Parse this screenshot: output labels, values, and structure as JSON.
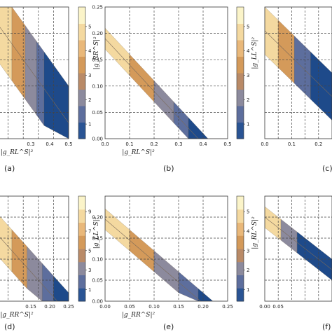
{
  "chart_data": [
    {
      "type": "heatmap",
      "panel_label": "(a)",
      "xlabel": "|g_RL^S|²",
      "ylabel": "",
      "x_ticks": [
        "0.3",
        "0.4",
        "0.5"
      ],
      "y_ticks": [],
      "colorbar_ticks": [
        "1",
        "2",
        "3",
        "4",
        "5"
      ],
      "colorbar_label": "|g_RR^S|²",
      "xlim": [
        0.1,
        0.5
      ],
      "ylim": [
        0,
        0.25
      ],
      "band": {
        "intercept_min": 0.21,
        "intercept_max": 0.35,
        "slope": -0.5,
        "x_max": 0.5
      },
      "bands_x": [
        0.1,
        0.2,
        0.27,
        0.33,
        0.37,
        0.5
      ]
    },
    {
      "type": "heatmap",
      "panel_label": "(b)",
      "xlabel": "|g_RL^S|²",
      "ylabel": "",
      "x_ticks": [
        "0.0",
        "0.1",
        "0.2",
        "0.3",
        "0.4",
        "0.5"
      ],
      "y_ticks": [
        "0.00",
        "0.05",
        "0.10",
        "0.15",
        "0.20",
        "0.25"
      ],
      "colorbar_ticks": [
        "1",
        "2",
        "3",
        "4",
        "5"
      ],
      "colorbar_label": "|g_LL^S|²",
      "xlim": [
        0,
        0.5
      ],
      "ylim": [
        0,
        0.25
      ],
      "band": {
        "intercept_min": 0.17,
        "intercept_max": 0.21,
        "slope": -0.5,
        "x_max": 0.5
      },
      "bands_x": [
        0.0,
        0.1,
        0.2,
        0.28,
        0.34,
        0.5
      ]
    },
    {
      "type": "heatmap",
      "panel_label": "(c)",
      "xlabel": "",
      "ylabel": "",
      "x_ticks": [
        "0.0",
        "0.1",
        "0.2"
      ],
      "y_ticks": [],
      "colorbar_ticks": [],
      "colorbar_label": "",
      "xlim": [
        0,
        0.25
      ],
      "ylim": [
        0,
        0.5
      ],
      "band": {
        "intercept_min": 0.32,
        "intercept_max": 0.5,
        "slope": -1.0,
        "x_max": 0.25
      },
      "bands_x": [
        0.0,
        0.05,
        0.11,
        0.17,
        0.25
      ]
    },
    {
      "type": "heatmap",
      "panel_label": "(d)",
      "xlabel": "|g_RR^S|²",
      "ylabel": "",
      "x_ticks": [
        "0.15",
        "0.20",
        "0.25"
      ],
      "y_ticks": [],
      "colorbar_ticks": [
        "1",
        "3",
        "5",
        "7",
        "9"
      ],
      "colorbar_label": "|g_LL^S|²",
      "xlim": [
        0.05,
        0.25
      ],
      "ylim": [
        0,
        0.25
      ],
      "band": {
        "intercept_min": 0.17,
        "intercept_max": 0.27,
        "slope": -1.0,
        "x_max": 0.25
      },
      "bands_x": [
        0.05,
        0.1,
        0.14,
        0.18,
        0.21,
        0.25
      ]
    },
    {
      "type": "heatmap",
      "panel_label": "(e)",
      "xlabel": "|g_RR^S|²",
      "ylabel": "",
      "x_ticks": [
        "0.00",
        "0.05",
        "0.10",
        "0.15",
        "0.20",
        "0.25"
      ],
      "y_ticks": [
        "0.00",
        "0.05",
        "0.10",
        "0.15",
        "0.20"
      ],
      "colorbar_ticks": [
        "1",
        "2",
        "3",
        "4",
        "5"
      ],
      "colorbar_label": "|g_RL^S|²",
      "xlim": [
        0,
        0.25
      ],
      "ylim": [
        0,
        0.25
      ],
      "band": {
        "intercept_min": 0.17,
        "intercept_max": 0.22,
        "slope": -1.0,
        "x_max": 0.25
      },
      "bands_x": [
        0.0,
        0.05,
        0.1,
        0.15,
        0.19,
        0.25
      ]
    },
    {
      "type": "heatmap",
      "panel_label": "(f)",
      "xlabel": "",
      "ylabel": "",
      "x_ticks": [
        "0.00",
        "0.05"
      ],
      "y_ticks": [],
      "colorbar_ticks": [],
      "colorbar_label": "",
      "xlim": [
        0,
        0.25
      ],
      "ylim": [
        0,
        0.5
      ],
      "band": {
        "intercept_min": 0.35,
        "intercept_max": 0.45,
        "slope": -1.0,
        "x_max": 0.25
      },
      "bands_x": [
        0.0,
        0.06,
        0.12,
        0.25
      ]
    }
  ],
  "colors": {
    "palette": [
      "#fbf4c9",
      "#f4d9a0",
      "#e9b87a",
      "#d49a5a",
      "#b98a67",
      "#8c8a9d",
      "#5d6e9d",
      "#2a5494",
      "#1e4a8a"
    ],
    "grid": "#444444",
    "frame": "#333333"
  }
}
